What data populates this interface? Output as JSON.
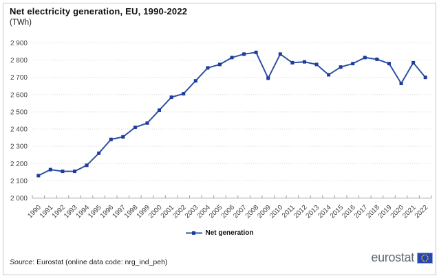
{
  "header": {
    "title": "Net electricity generation, EU, 1990-2022",
    "subtitle": "(TWh)"
  },
  "chart_data": {
    "type": "line",
    "title": "Net electricity generation, EU, 1990-2022",
    "ylabel": "TWh",
    "xlabel": "",
    "x": [
      "1990",
      "1991",
      "1992",
      "1993",
      "1994",
      "1995",
      "1996",
      "1997",
      "1998",
      "1999",
      "2000",
      "2001",
      "2002",
      "2003",
      "2004",
      "2005",
      "2006",
      "2007",
      "2008",
      "2009",
      "2010",
      "2011",
      "2012",
      "2013",
      "2014",
      "2015",
      "2016",
      "2017",
      "2018",
      "2019",
      "2020",
      "2021",
      "2022"
    ],
    "series": [
      {
        "name": "Net generation",
        "color": "#2d4fa4",
        "marker": "square",
        "marker_color": "#1e3c9b",
        "values": [
          2130,
          2165,
          2155,
          2155,
          2190,
          2260,
          2340,
          2355,
          2410,
          2435,
          2510,
          2585,
          2605,
          2680,
          2755,
          2775,
          2815,
          2835,
          2845,
          2695,
          2835,
          2785,
          2790,
          2775,
          2715,
          2760,
          2780,
          2815,
          2805,
          2780,
          2665,
          2785,
          2700
        ]
      }
    ],
    "ylim": [
      2000,
      2900
    ],
    "ytick_step": 100,
    "ytick_labels": [
      "2 000",
      "2 100",
      "2 200",
      "2 300",
      "2 400",
      "2 500",
      "2 600",
      "2 700",
      "2 800",
      "2 900"
    ],
    "grid": "horizontal-dotted",
    "legend_position": "bottom-center"
  },
  "legend": {
    "items": [
      {
        "label": "Net generation",
        "icon": "line-square-marker"
      }
    ]
  },
  "footer": {
    "source_label": "Source",
    "source_rest": ": Eurostat (online data code: nrg_ind_peh)",
    "logo_text": "eurostat"
  },
  "colors": {
    "line": "#2d4fa4",
    "marker": "#1e3c9b",
    "gridline": "#d9d9d9",
    "axis": "#9b9b9b",
    "axis_text": "#3f3f3f",
    "logo_flag_blue": "#2747b0",
    "logo_star_yellow": "#ffcc00"
  }
}
